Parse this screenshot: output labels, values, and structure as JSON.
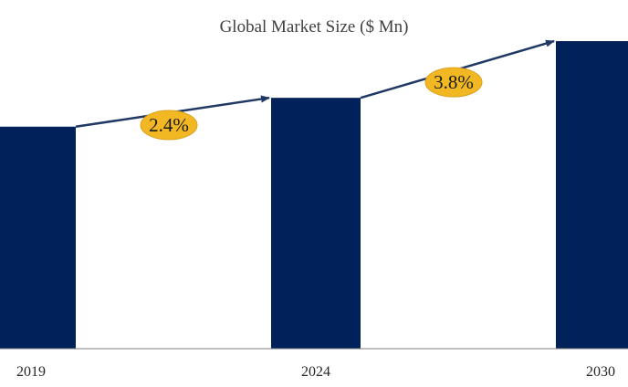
{
  "chart_data": {
    "type": "bar",
    "title": "Global Market Size ($ Mn)",
    "xlabel": "",
    "ylabel": "",
    "categories": [
      "2019",
      "2024",
      "2030"
    ],
    "values": [
      231,
      261,
      320
    ],
    "ylim": [
      0,
      340
    ],
    "grid": false,
    "legend": "none",
    "annotations": [
      {
        "label": "2.4%",
        "from": "2019",
        "to": "2024"
      },
      {
        "label": "3.8%",
        "from": "2024",
        "to": "2030"
      }
    ]
  },
  "colors": {
    "bar": "#00215a",
    "arrow": "#1f3864",
    "badge_fill": "#f2b824",
    "badge_stroke": "#d9a21e",
    "axis": "#7f7f7f"
  }
}
